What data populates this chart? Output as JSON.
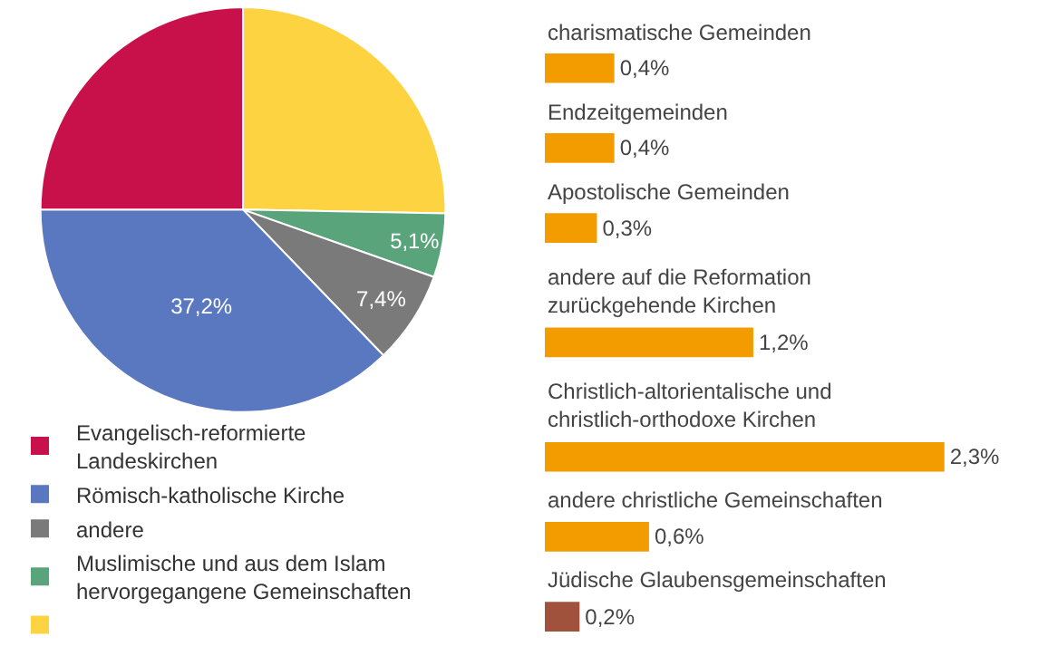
{
  "chart_data": [
    {
      "type": "pie",
      "categories": [
        null,
        "Muslimische und aus dem Islam hervorgegangene Gemeinschaften",
        "andere",
        "Römisch-katholische Kirche",
        "Evangelisch-reformierte Landeskirchen"
      ],
      "values": [
        25.3,
        5.1,
        7.4,
        37.2,
        25.0
      ],
      "colors": [
        "#fdd342",
        "#5aa47c",
        "#7a7a7a",
        "#5a78bf",
        "#c8104a"
      ],
      "value_labels": [
        null,
        "5,1%",
        "7,4%",
        "37,2%",
        null
      ],
      "legend": "bottom left"
    },
    {
      "type": "bar",
      "orientation": "horizontal",
      "categories": [
        "charismatische Gemeinden",
        "Endzeitgemeinden",
        "Apostolische Gemeinden",
        "andere auf die Reformation zurückgehende Kirchen",
        "Christlich-altorientalische und christlich-orthodoxe Kirchen",
        "andere christliche Gemeinschaften",
        "Jüdische Glaubensgemeinschaften"
      ],
      "values": [
        0.4,
        0.4,
        0.3,
        1.2,
        2.3,
        0.6,
        0.2
      ],
      "colors": [
        "#f39c00",
        "#f39c00",
        "#f39c00",
        "#f39c00",
        "#f39c00",
        "#f39c00",
        "#a0523c"
      ],
      "value_labels": [
        "0,4%",
        "0,4%",
        "0,3%",
        "1,2%",
        "2,3%",
        "0,6%",
        "0,2%"
      ]
    }
  ]
}
